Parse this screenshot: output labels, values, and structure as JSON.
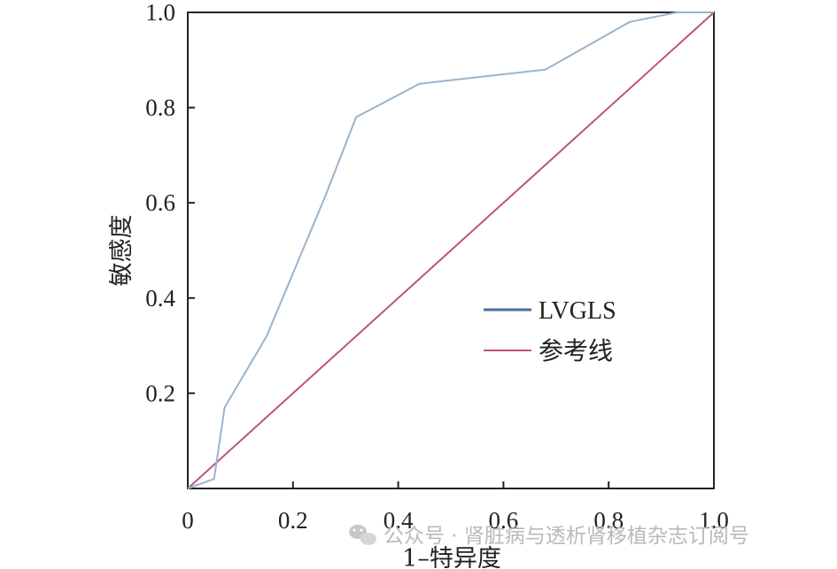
{
  "chart_data": {
    "type": "line",
    "xlabel": "1–特异度",
    "ylabel": "敏感度",
    "xlim": [
      0,
      1
    ],
    "ylim": [
      0,
      1
    ],
    "x_ticks": [
      "0",
      "0.2",
      "0.4",
      "0.6",
      "0.8",
      "1.0"
    ],
    "y_ticks": [
      "0.2",
      "0.4",
      "0.6",
      "0.8",
      "1.0"
    ],
    "grid": false,
    "legend_position": "center-right",
    "series": [
      {
        "name": "LVGLS",
        "color": "#9bb3cc",
        "legend_color": "#4e6c9e",
        "x": [
          0,
          0.05,
          0.07,
          0.15,
          0.26,
          0.32,
          0.44,
          0.68,
          0.84,
          0.93,
          1.0
        ],
        "y": [
          0,
          0.02,
          0.17,
          0.32,
          0.61,
          0.78,
          0.85,
          0.88,
          0.98,
          1.0,
          1.0
        ]
      },
      {
        "name": "参考线",
        "color": "#c0576a",
        "x": [
          0,
          1
        ],
        "y": [
          0,
          1
        ]
      }
    ]
  },
  "watermark": {
    "icon": "wechat-icon",
    "text": "公众号 · 肾脏病与透析肾移植杂志订阅号"
  }
}
